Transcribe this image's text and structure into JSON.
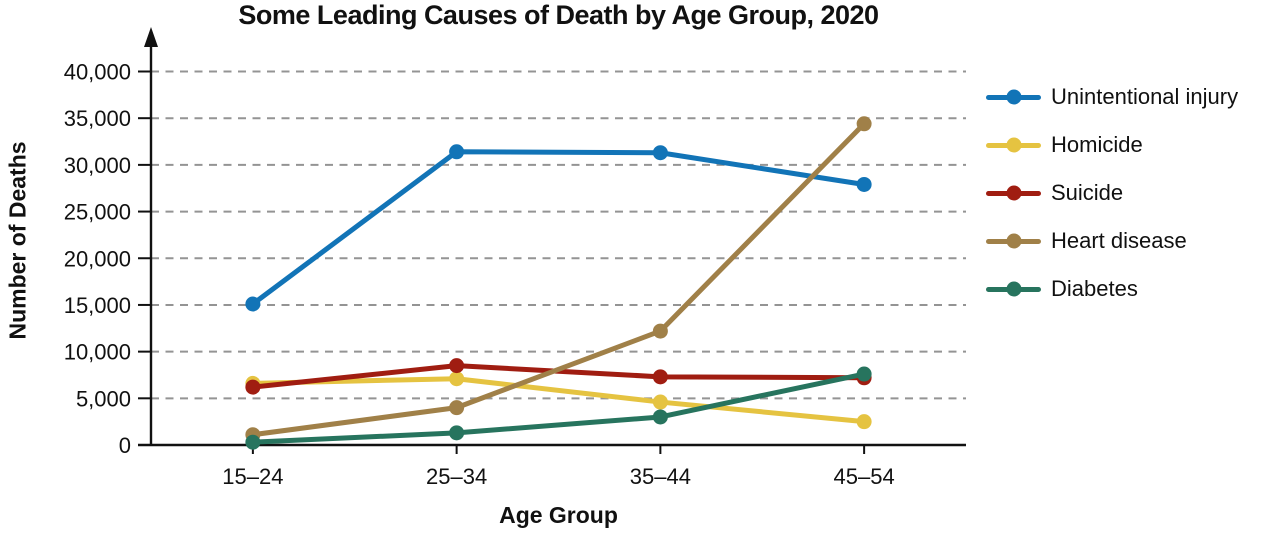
{
  "chart_data": {
    "type": "line",
    "title": "Some Leading Causes of Death by Age Group, 2020",
    "xlabel": "Age Group",
    "ylabel": "Number of Deaths",
    "categories": [
      "15–24",
      "25–34",
      "35–44",
      "45–54"
    ],
    "series": [
      {
        "name": "Unintentional injury",
        "color": "#1274b7",
        "values": [
          15100,
          31400,
          31300,
          27900
        ]
      },
      {
        "name": "Homicide",
        "color": "#e5c341",
        "values": [
          6600,
          7100,
          4600,
          2500
        ]
      },
      {
        "name": "Suicide",
        "color": "#a01d11",
        "values": [
          6200,
          8500,
          7300,
          7200
        ]
      },
      {
        "name": "Heart disease",
        "color": "#a08048",
        "values": [
          1100,
          4000,
          12200,
          34400
        ]
      },
      {
        "name": "Diabetes",
        "color": "#27745e",
        "values": [
          300,
          1300,
          3000,
          7600
        ]
      }
    ],
    "ylim": [
      0,
      44000
    ],
    "yticks": [
      {
        "value": 0,
        "label": "0"
      },
      {
        "value": 5000,
        "label": "5,000"
      },
      {
        "value": 10000,
        "label": "10,000"
      },
      {
        "value": 15000,
        "label": "15,000"
      },
      {
        "value": 20000,
        "label": "20,000"
      },
      {
        "value": 25000,
        "label": "25,000"
      },
      {
        "value": 30000,
        "label": "30,000"
      },
      {
        "value": 35000,
        "label": "35,000"
      },
      {
        "value": 40000,
        "label": "40,000"
      }
    ],
    "grid": true,
    "gridline_color": "#949494",
    "axis_color": "#111111",
    "legend_position": "right"
  }
}
